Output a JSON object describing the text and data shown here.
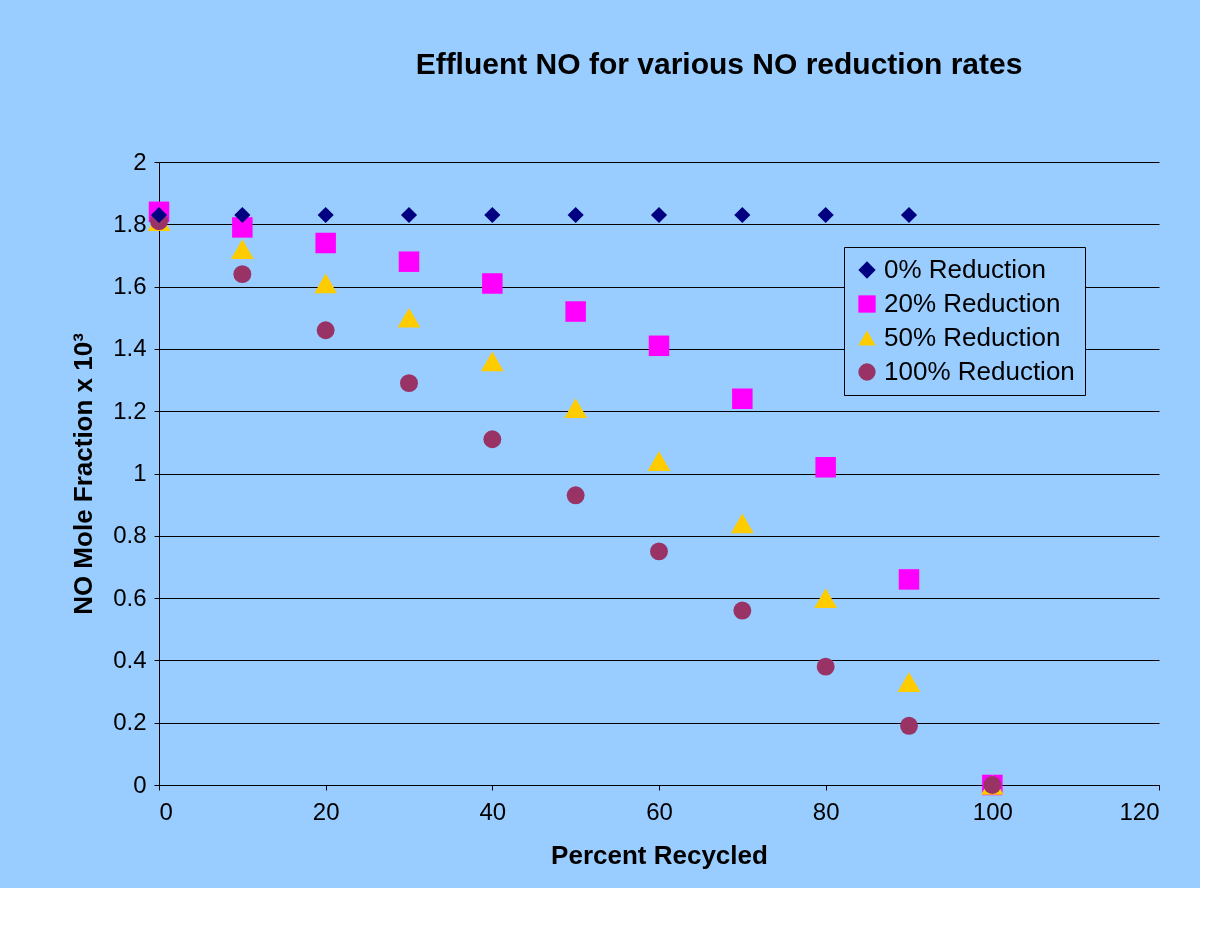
{
  "chart_data": {
    "type": "scatter",
    "title": "Effluent NO for various NO reduction rates",
    "xlabel": "Percent Recycled",
    "ylabel": "NO Mole Fraction x 10³",
    "xlim": [
      0,
      120
    ],
    "xticks": [
      0,
      20,
      40,
      60,
      80,
      100,
      120
    ],
    "ylim": [
      0,
      2
    ],
    "yticks": [
      0,
      0.2,
      0.4,
      0.6,
      0.8,
      1,
      1.2,
      1.4,
      1.6,
      1.8,
      2
    ],
    "grid": "y",
    "legend": "top right",
    "series": [
      {
        "name": "0% Reduction",
        "color": "#000080",
        "marker": "diamond",
        "x": [
          0,
          10,
          20,
          30,
          40,
          50,
          60,
          70,
          80,
          90
        ],
        "values": [
          1.83,
          1.83,
          1.83,
          1.83,
          1.83,
          1.83,
          1.83,
          1.83,
          1.83,
          1.83
        ]
      },
      {
        "name": "20% Reduction",
        "color": "#ff00ff",
        "marker": "square",
        "x": [
          0,
          10,
          20,
          30,
          40,
          50,
          60,
          70,
          80,
          90,
          100
        ],
        "values": [
          1.84,
          1.79,
          1.74,
          1.68,
          1.61,
          1.52,
          1.41,
          1.24,
          1.02,
          0.66,
          0
        ]
      },
      {
        "name": "50% Reduction",
        "color": "#ffcc00",
        "marker": "triangle",
        "x": [
          0,
          10,
          20,
          30,
          40,
          50,
          60,
          70,
          80,
          90,
          100
        ],
        "values": [
          1.81,
          1.72,
          1.61,
          1.5,
          1.36,
          1.21,
          1.04,
          0.84,
          0.6,
          0.33,
          0
        ]
      },
      {
        "name": "100% Reduction",
        "color": "#993366",
        "marker": "circle",
        "x": [
          0,
          10,
          20,
          30,
          40,
          50,
          60,
          70,
          80,
          90,
          100
        ],
        "values": [
          1.81,
          1.64,
          1.46,
          1.29,
          1.11,
          0.93,
          0.75,
          0.56,
          0.38,
          0.19,
          0
        ]
      }
    ]
  }
}
